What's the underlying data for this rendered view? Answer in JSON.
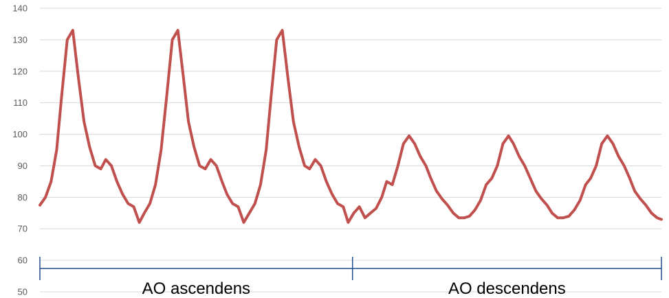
{
  "chart_data": {
    "type": "line",
    "title": "",
    "xlabel": "",
    "ylabel": "",
    "ylim": [
      50,
      140
    ],
    "yticks": [
      50,
      60,
      70,
      80,
      90,
      100,
      110,
      120,
      130,
      140
    ],
    "grid": true,
    "legend": "none",
    "x_domain": [
      0,
      100
    ],
    "series": [
      {
        "color": "#c0504d",
        "x": [
          0,
          0.9,
          1.8,
          2.7,
          3.5,
          4.4,
          5.3,
          6.2,
          7.1,
          8.0,
          8.9,
          9.8,
          10.6,
          11.5,
          12.4,
          13.3,
          14.2,
          15.1,
          16.0,
          16.8,
          17.7,
          18.6,
          19.5,
          20.4,
          21.3,
          22.2,
          23.1,
          23.9,
          24.8,
          25.7,
          26.6,
          27.5,
          28.4,
          29.3,
          30.1,
          31.0,
          31.9,
          32.8,
          33.7,
          34.6,
          35.5,
          36.4,
          37.2,
          38.1,
          39.0,
          39.9,
          40.8,
          41.7,
          42.6,
          43.4,
          44.3,
          45.2,
          46.1,
          47.0,
          47.9,
          48.8,
          49.6,
          50.5,
          51.4,
          52.3,
          53.2,
          54.1,
          55.0,
          55.8,
          56.7,
          57.6,
          58.5,
          59.4,
          60.3,
          61.2,
          62.1,
          62.9,
          63.8,
          64.7,
          65.6,
          66.5,
          67.4,
          68.3,
          69.1,
          70.0,
          70.9,
          71.8,
          72.7,
          73.6,
          74.5,
          75.4,
          76.2,
          77.1,
          78.0,
          78.9,
          79.8,
          80.7,
          81.6,
          82.4,
          83.3,
          84.2,
          85.1,
          86.0,
          86.9,
          87.8,
          88.6,
          89.5,
          90.4,
          91.3,
          92.2,
          93.1,
          94.0,
          94.9,
          95.7,
          96.6,
          97.5,
          98.4,
          99.3,
          100
        ],
        "values": [
          77.5,
          80,
          85,
          95,
          112,
          130,
          133,
          118,
          104,
          96,
          90,
          89,
          92,
          90,
          85,
          81,
          78,
          77,
          72,
          75,
          78,
          84,
          95,
          112,
          130,
          133,
          118,
          104,
          96,
          90,
          89,
          92,
          90,
          85,
          81,
          78,
          77,
          72,
          75,
          78,
          84,
          95,
          112,
          130,
          133,
          118,
          104,
          96,
          90,
          89,
          92,
          90,
          85,
          81,
          78,
          77,
          72,
          75,
          77,
          73.5,
          75,
          76.5,
          80,
          85,
          84,
          90,
          97,
          99.5,
          97,
          93,
          90,
          86,
          82,
          79.5,
          77.5,
          75,
          73.5,
          73.5,
          74,
          76,
          79,
          84,
          86,
          90,
          97,
          99.5,
          97,
          93,
          90,
          86,
          82,
          79.5,
          77.5,
          75,
          73.5,
          73.5,
          74,
          76,
          79,
          84,
          86,
          90,
          97,
          99.5,
          97,
          93,
          90,
          86,
          82,
          79.5,
          77.5,
          75,
          73.5,
          73
        ]
      }
    ],
    "segments": [
      {
        "label": "AO ascendens",
        "from": 0,
        "to": 50.3
      },
      {
        "label": "AO descendens",
        "from": 50.3,
        "to": 100
      }
    ],
    "segment_color": "#1f4e8c"
  }
}
